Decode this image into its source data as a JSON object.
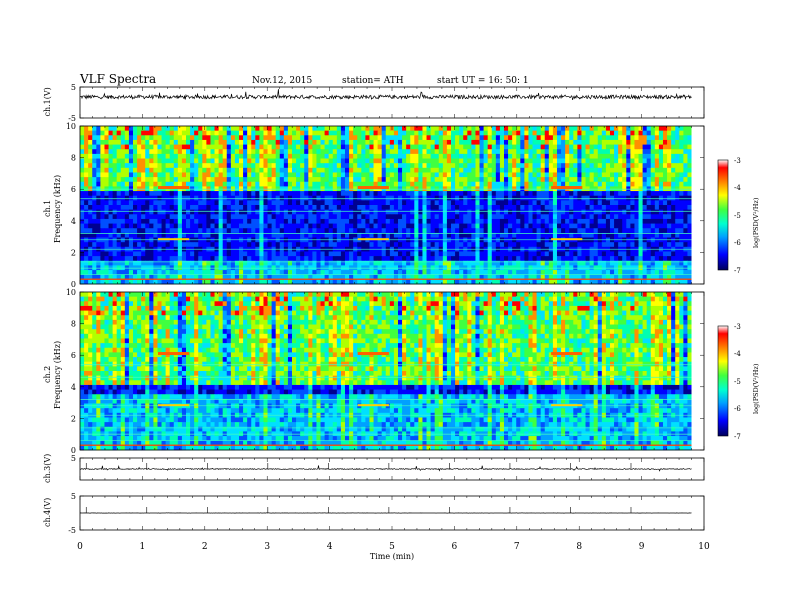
{
  "header": {
    "title": "VLF  Spectra",
    "date": "Nov.12, 2015",
    "station": "station= ATH",
    "start": "start  UT  =    16: 50: 1"
  },
  "chart_data": [
    {
      "type": "line",
      "panel": "ch1-waveform",
      "ylabel": "ch.1(V)",
      "ylim": [
        -5,
        5
      ],
      "yticks": [
        "5",
        "-5"
      ],
      "xlim": [
        0,
        10
      ],
      "baseline": 1.8,
      "noise_amplitude": 0.6,
      "color": "#000000"
    },
    {
      "type": "heatmap",
      "panel": "ch1-spectrogram",
      "ylabel_channel": "ch.1",
      "ylabel": "Frequency  (kHz)",
      "ylim": [
        0,
        10
      ],
      "yticks": [
        "0",
        "2",
        "4",
        "6",
        "8",
        "10"
      ],
      "xlim": [
        0,
        9.8
      ],
      "features": {
        "quiet_band_khz": [
          1.6,
          5.8
        ],
        "transmitter_line_khz": 6.0,
        "bursts_min": [
          1.5,
          4.7,
          7.8
        ]
      },
      "colorbar": {
        "label": "log(PSD(V²/Hz)",
        "range": [
          -7,
          -3
        ],
        "ticks": [
          "-3",
          "-4",
          "-5",
          "-6",
          "-7"
        ]
      }
    },
    {
      "type": "heatmap",
      "panel": "ch2-spectrogram",
      "ylabel_channel": "ch.2",
      "ylabel": "Frequency  (kHz)",
      "ylim": [
        0,
        10
      ],
      "yticks": [
        "0",
        "2",
        "4",
        "6",
        "8",
        "10"
      ],
      "xlim": [
        0,
        9.8
      ],
      "features": {
        "quiet_band_khz": [
          3.4,
          4.0
        ],
        "bursts_min": [
          1.5,
          4.7,
          7.8
        ]
      },
      "colorbar": {
        "label": "log(PSD(V²/Hz)",
        "range": [
          -7,
          -3
        ],
        "ticks": [
          "-3",
          "-4",
          "-5",
          "-6",
          "-7"
        ]
      }
    },
    {
      "type": "line",
      "panel": "ch3-waveform",
      "ylabel": "ch.3(V)",
      "ylim": [
        -5,
        5
      ],
      "yticks": [
        "5"
      ],
      "xlim": [
        0,
        10
      ],
      "baseline": 0.0,
      "noise_amplitude": 0.2,
      "color": "#000000"
    },
    {
      "type": "line",
      "panel": "ch4-waveform",
      "ylabel": "ch.4(V)",
      "ylim": [
        -5,
        5
      ],
      "yticks": [
        "5",
        "-5"
      ],
      "xlim": [
        0,
        10
      ],
      "baseline": 0.0,
      "noise_amplitude": 0.02,
      "color": "#000000"
    }
  ],
  "x_axis": {
    "label": "Time  (min)",
    "ticks": [
      "0",
      "1",
      "2",
      "3",
      "4",
      "5",
      "6",
      "7",
      "8",
      "9",
      "10"
    ],
    "range": [
      0,
      10
    ]
  }
}
